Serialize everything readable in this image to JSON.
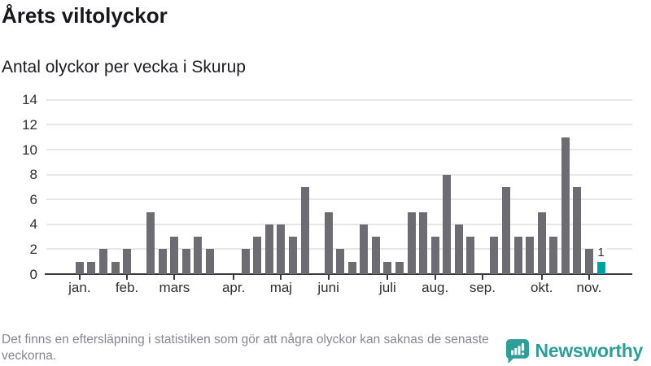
{
  "header": {
    "title": "Årets viltolyckor",
    "subtitle": "Antal olyckor per vecka i Skurup"
  },
  "chart_data": {
    "type": "bar",
    "title": "Årets viltolyckor",
    "subtitle": "Antal olyckor per vecka i Skurup",
    "xlabel": "",
    "ylabel": "",
    "ylim": [
      0,
      14
    ],
    "y_ticks": [
      0,
      2,
      4,
      6,
      8,
      10,
      12,
      14
    ],
    "grid": "horizontal",
    "unit": "olyckor per vecka",
    "values": [
      1,
      1,
      2,
      1,
      2,
      0,
      5,
      2,
      3,
      2,
      3,
      2,
      0,
      0,
      2,
      3,
      4,
      4,
      3,
      7,
      0,
      5,
      2,
      1,
      4,
      3,
      1,
      1,
      5,
      5,
      3,
      8,
      4,
      3,
      0,
      3,
      7,
      3,
      3,
      5,
      3,
      11,
      7,
      2,
      1
    ],
    "month_ticks": [
      {
        "label": "jan.",
        "slot": 1
      },
      {
        "label": "feb.",
        "slot": 5
      },
      {
        "label": "mars",
        "slot": 9
      },
      {
        "label": "apr.",
        "slot": 14
      },
      {
        "label": "maj",
        "slot": 18
      },
      {
        "label": "juni",
        "slot": 22
      },
      {
        "label": "juli",
        "slot": 27
      },
      {
        "label": "aug.",
        "slot": 31
      },
      {
        "label": "sep.",
        "slot": 35
      },
      {
        "label": "okt.",
        "slot": 40
      },
      {
        "label": "nov.",
        "slot": 44
      }
    ],
    "highlight_last_bar": true,
    "last_bar_label": "1",
    "colors": {
      "bar": "#6c6c72",
      "highlight": "#00a0a0",
      "grid": "#e7e7e9",
      "axis": "#3b3b40"
    }
  },
  "footer": {
    "note": "Det finns en eftersläpning i statistiken som gör att några olyckor kan saknas de senaste veckorna.",
    "brand": "Newsworthy",
    "brand_color": "#2f9e99"
  }
}
